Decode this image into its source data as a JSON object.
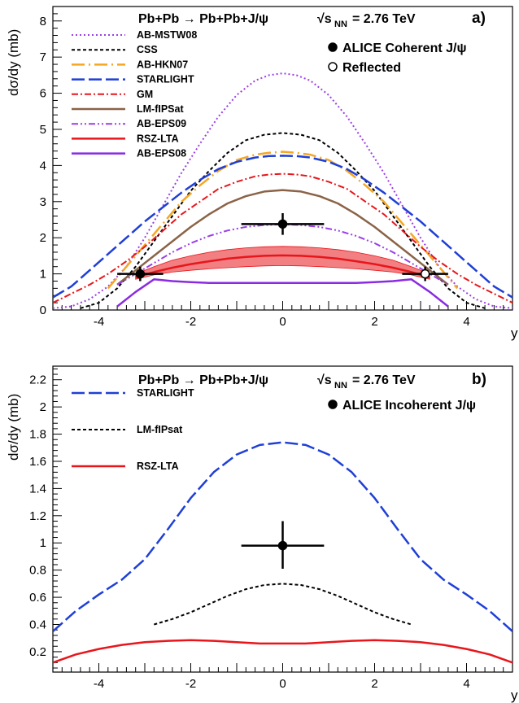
{
  "chart_data": [
    {
      "type": "line",
      "panel_label": "a)",
      "title": {
        "process": "Pb+Pb → Pb+Pb+J/ψ",
        "energy": "√s",
        "energy_sub": "NN",
        "energy_value": "= 2.76 TeV"
      },
      "xlabel": "y",
      "ylabel": "dσ/dy (mb)",
      "xlim": [
        -5,
        5
      ],
      "ylim": [
        0,
        8.4
      ],
      "xticks": [
        -4,
        -2,
        0,
        2,
        4
      ],
      "yticks": [
        0,
        1,
        2,
        3,
        4,
        5,
        6,
        7,
        8
      ],
      "legend_placement": "top-left",
      "series": [
        {
          "name": "AB-MSTW08",
          "color": "#9b3fe6",
          "dash": "2,3",
          "width": 2,
          "x": [
            -5,
            -4.6,
            -4.2,
            -3.8,
            -3.4,
            -3.0,
            -2.6,
            -2.2,
            -1.8,
            -1.4,
            -1.0,
            -0.6,
            -0.3,
            0,
            0.3,
            0.6,
            1.0,
            1.4,
            1.8,
            2.2,
            2.6,
            3.0,
            3.4,
            3.8,
            4.2,
            4.6,
            5
          ],
          "y": [
            0.05,
            0.1,
            0.3,
            0.65,
            1.2,
            2.0,
            2.9,
            3.8,
            4.6,
            5.35,
            5.95,
            6.35,
            6.5,
            6.55,
            6.5,
            6.35,
            5.95,
            5.35,
            4.6,
            3.8,
            2.9,
            2.0,
            1.2,
            0.65,
            0.3,
            0.1,
            0.05
          ]
        },
        {
          "name": "CSS",
          "color": "#000000",
          "dash": "4,3",
          "width": 2,
          "x": [
            -4.4,
            -4.0,
            -3.6,
            -3.2,
            -2.8,
            -2.4,
            -2.0,
            -1.6,
            -1.2,
            -0.8,
            -0.4,
            0,
            0.4,
            0.8,
            1.2,
            1.6,
            2.0,
            2.4,
            2.8,
            3.2,
            3.6,
            4.0,
            4.4
          ],
          "y": [
            0.05,
            0.2,
            0.6,
            1.2,
            1.9,
            2.6,
            3.3,
            3.85,
            4.35,
            4.7,
            4.85,
            4.9,
            4.85,
            4.7,
            4.35,
            3.85,
            3.3,
            2.6,
            1.9,
            1.2,
            0.6,
            0.2,
            0.05
          ]
        },
        {
          "name": "AB-HKN07",
          "color": "#f5a623",
          "dash": "16,5,2,5",
          "width": 2.5,
          "x": [
            -3.8,
            -3.4,
            -3.0,
            -2.6,
            -2.2,
            -1.8,
            -1.4,
            -1.0,
            -0.6,
            -0.3,
            0,
            0.3,
            0.6,
            1.0,
            1.4,
            1.8,
            2.2,
            2.6,
            3.0,
            3.4,
            3.8
          ],
          "y": [
            0.6,
            1.2,
            1.8,
            2.4,
            3.0,
            3.45,
            3.85,
            4.15,
            4.3,
            4.35,
            4.38,
            4.35,
            4.3,
            4.15,
            3.85,
            3.45,
            3.0,
            2.4,
            1.8,
            1.2,
            0.6
          ]
        },
        {
          "name": "STARLIGHT",
          "color": "#1f3fd6",
          "dash": "16,5",
          "width": 2.5,
          "x": [
            -5,
            -4.6,
            -4.2,
            -3.8,
            -3.4,
            -3.0,
            -2.6,
            -2.2,
            -1.8,
            -1.4,
            -1.0,
            -0.6,
            -0.3,
            0,
            0.3,
            0.6,
            1.0,
            1.4,
            1.8,
            2.2,
            2.6,
            3.0,
            3.4,
            3.8,
            4.2,
            4.6,
            5
          ],
          "y": [
            0.35,
            0.65,
            1.1,
            1.55,
            2.0,
            2.45,
            2.85,
            3.25,
            3.6,
            3.9,
            4.1,
            4.22,
            4.26,
            4.27,
            4.26,
            4.22,
            4.1,
            3.9,
            3.6,
            3.25,
            2.85,
            2.45,
            2.0,
            1.55,
            1.1,
            0.65,
            0.35
          ]
        },
        {
          "name": "GM",
          "color": "#e8161b",
          "dash": "8,3,2,3",
          "width": 2,
          "x": [
            -5,
            -4.6,
            -4.2,
            -3.8,
            -3.4,
            -3.0,
            -2.6,
            -2.2,
            -1.8,
            -1.4,
            -1.0,
            -0.6,
            -0.3,
            0,
            0.3,
            0.6,
            1.0,
            1.4,
            1.8,
            2.2,
            2.6,
            3.0,
            3.4,
            3.8,
            4.2,
            4.6,
            5
          ],
          "y": [
            0.2,
            0.45,
            0.7,
            1.0,
            1.35,
            1.75,
            2.2,
            2.65,
            3.0,
            3.35,
            3.55,
            3.7,
            3.75,
            3.77,
            3.75,
            3.7,
            3.55,
            3.35,
            3.0,
            2.65,
            2.2,
            1.75,
            1.35,
            1.0,
            0.7,
            0.45,
            0.2
          ]
        },
        {
          "name": "LM-fIPSat",
          "color": "#8b6347",
          "dash": "",
          "width": 2.5,
          "x": [
            -3.6,
            -3.2,
            -2.8,
            -2.4,
            -2.0,
            -1.6,
            -1.2,
            -0.8,
            -0.4,
            0,
            0.4,
            0.8,
            1.2,
            1.6,
            2.0,
            2.4,
            2.8,
            3.2,
            3.6
          ],
          "y": [
            0.7,
            1.1,
            1.5,
            1.9,
            2.3,
            2.65,
            2.95,
            3.15,
            3.28,
            3.32,
            3.28,
            3.15,
            2.95,
            2.65,
            2.3,
            1.9,
            1.5,
            1.1,
            0.7
          ]
        },
        {
          "name": "AB-EPS09",
          "color": "#9b3fe6",
          "dash": "8,3,2,3,2,3",
          "width": 2,
          "x": [
            -3.6,
            -3.2,
            -2.8,
            -2.4,
            -2.0,
            -1.6,
            -1.2,
            -0.8,
            -0.4,
            0,
            0.4,
            0.8,
            1.2,
            1.6,
            2.0,
            2.4,
            2.8,
            3.2,
            3.6
          ],
          "y": [
            0.7,
            1.0,
            1.3,
            1.6,
            1.85,
            2.05,
            2.2,
            2.3,
            2.35,
            2.37,
            2.35,
            2.3,
            2.2,
            2.05,
            1.85,
            1.6,
            1.3,
            1.0,
            0.7
          ]
        },
        {
          "name": "RSZ-LTA",
          "color": "#e8161b",
          "dash": "",
          "width": 2.5,
          "band": true,
          "x": [
            -3.2,
            -2.8,
            -2.4,
            -2.0,
            -1.6,
            -1.2,
            -0.8,
            -0.4,
            0,
            0.4,
            0.8,
            1.2,
            1.6,
            2.0,
            2.4,
            2.8,
            3.2
          ],
          "y": [
            0.9,
            1.05,
            1.17,
            1.27,
            1.35,
            1.42,
            1.47,
            1.5,
            1.51,
            1.5,
            1.47,
            1.42,
            1.35,
            1.27,
            1.17,
            1.05,
            0.9
          ],
          "y_low": [
            0.85,
            0.97,
            1.05,
            1.1,
            1.14,
            1.17,
            1.2,
            1.22,
            1.23,
            1.22,
            1.2,
            1.17,
            1.14,
            1.1,
            1.05,
            0.97,
            0.85
          ],
          "y_high": [
            1.0,
            1.2,
            1.38,
            1.5,
            1.6,
            1.67,
            1.72,
            1.75,
            1.76,
            1.75,
            1.72,
            1.67,
            1.6,
            1.5,
            1.38,
            1.2,
            1.0
          ]
        },
        {
          "name": "AB-EPS08",
          "color": "#8a2be2",
          "dash": "",
          "width": 2.5,
          "x": [
            -3.6,
            -3.2,
            -2.8,
            -2.4,
            -2.0,
            -1.6,
            -1.2,
            -0.8,
            -0.4,
            0,
            0.4,
            0.8,
            1.2,
            1.6,
            2.0,
            2.4,
            2.8,
            3.2,
            3.6
          ],
          "y": [
            0.1,
            0.5,
            0.85,
            0.8,
            0.77,
            0.75,
            0.75,
            0.75,
            0.75,
            0.75,
            0.75,
            0.75,
            0.75,
            0.75,
            0.77,
            0.8,
            0.85,
            0.5,
            0.1
          ]
        }
      ],
      "points": [
        {
          "name": "ALICE Coherent J/ψ",
          "marker": "filled",
          "x": 0,
          "y": 2.38,
          "xerr": 0.9,
          "yerr": [
            0.3,
            0.3
          ]
        },
        {
          "name": "ALICE Coherent J/ψ",
          "marker": "filled",
          "x": -3.1,
          "y": 1.0,
          "xerr": 0.5,
          "yerr": [
            0.2,
            0.2
          ]
        },
        {
          "name": "Reflected",
          "marker": "open",
          "x": 3.1,
          "y": 1.0,
          "xerr": 0.5,
          "yerr": [
            0.2,
            0.2
          ]
        }
      ],
      "point_legend": [
        {
          "label": "ALICE Coherent J/ψ",
          "marker": "filled"
        },
        {
          "label": "Reflected",
          "marker": "open"
        }
      ]
    },
    {
      "type": "line",
      "panel_label": "b)",
      "title": {
        "process": "Pb+Pb → Pb+Pb+J/ψ",
        "energy": "√s",
        "energy_sub": "NN",
        "energy_value": "= 2.76 TeV"
      },
      "xlabel": "y",
      "ylabel": "dσ/dy (mb)",
      "xlim": [
        -5,
        5
      ],
      "ylim": [
        0.05,
        2.3
      ],
      "xticks": [
        -4,
        -2,
        0,
        2,
        4
      ],
      "yticks": [
        0.2,
        0.4,
        0.6,
        0.8,
        1,
        1.2,
        1.4,
        1.6,
        1.8,
        2,
        2.2
      ],
      "legend_placement": "top-left",
      "series": [
        {
          "name": "STARLIGHT",
          "color": "#1f3fd6",
          "dash": "16,5",
          "width": 2.5,
          "x": [
            -5,
            -4.5,
            -4.0,
            -3.5,
            -3.0,
            -2.5,
            -2.0,
            -1.5,
            -1.0,
            -0.5,
            0,
            0.5,
            1.0,
            1.5,
            2.0,
            2.5,
            3.0,
            3.5,
            4.0,
            4.5,
            5
          ],
          "y": [
            0.35,
            0.5,
            0.62,
            0.73,
            0.88,
            1.1,
            1.33,
            1.52,
            1.65,
            1.72,
            1.74,
            1.72,
            1.65,
            1.52,
            1.33,
            1.1,
            0.88,
            0.73,
            0.62,
            0.5,
            0.35
          ]
        },
        {
          "name": "LM-fIPsat",
          "color": "#000000",
          "dash": "4,3",
          "width": 2,
          "x": [
            -2.8,
            -2.4,
            -2.0,
            -1.6,
            -1.2,
            -0.8,
            -0.4,
            0,
            0.4,
            0.8,
            1.2,
            1.6,
            2.0,
            2.4,
            2.8
          ],
          "y": [
            0.4,
            0.44,
            0.49,
            0.55,
            0.61,
            0.66,
            0.69,
            0.7,
            0.69,
            0.66,
            0.61,
            0.55,
            0.49,
            0.44,
            0.4
          ]
        },
        {
          "name": "RSZ-LTA",
          "color": "#e8161b",
          "dash": "",
          "width": 2.5,
          "x": [
            -5,
            -4.5,
            -4.0,
            -3.5,
            -3.0,
            -2.5,
            -2.0,
            -1.5,
            -1.0,
            -0.5,
            0,
            0.5,
            1.0,
            1.5,
            2.0,
            2.5,
            3.0,
            3.5,
            4.0,
            4.5,
            5
          ],
          "y": [
            0.12,
            0.18,
            0.22,
            0.25,
            0.27,
            0.28,
            0.285,
            0.28,
            0.27,
            0.26,
            0.26,
            0.26,
            0.27,
            0.28,
            0.285,
            0.28,
            0.27,
            0.25,
            0.22,
            0.18,
            0.12
          ]
        }
      ],
      "points": [
        {
          "name": "ALICE Incoherent J/ψ",
          "marker": "filled",
          "x": 0,
          "y": 0.98,
          "xerr": 0.9,
          "yerr": [
            0.17,
            0.18
          ]
        }
      ],
      "point_legend": [
        {
          "label": "ALICE Incoherent J/ψ",
          "marker": "filled"
        }
      ]
    }
  ]
}
